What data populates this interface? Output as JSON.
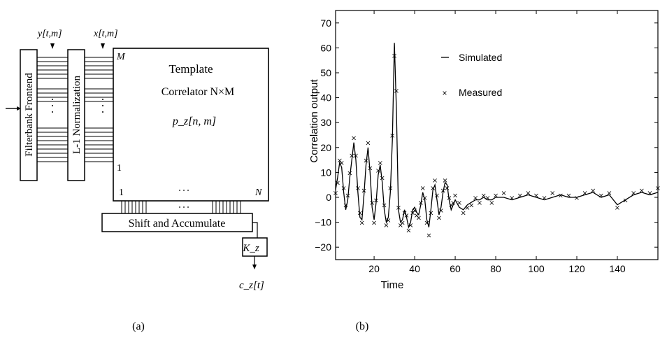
{
  "diagram": {
    "inputs": {
      "y_label": "y[t,m]",
      "x_label": "x[t,m]"
    },
    "blocks": {
      "frontend": "Filterbank Frontend",
      "normalization": "L-1 Normalization",
      "template_title": "Template",
      "template_sub": "Correlator N×M",
      "template_weights": "p_z[n, m]",
      "shift_accumulate": "Shift and Accumulate",
      "gain": "K_z"
    },
    "axis_labels": {
      "m_top": "M",
      "m_bottom": "1",
      "n_left": "1",
      "n_right": "N"
    },
    "output_label": "c_z[t]",
    "caption": "(a)"
  },
  "chart": {
    "caption": "(b)",
    "legend": {
      "simulated": "Simulated",
      "measured": "Measured"
    }
  },
  "chart_data": {
    "type": "line",
    "xlabel": "Time",
    "ylabel": "Correlation output",
    "xlim": [
      1,
      160
    ],
    "ylim": [
      -25,
      75
    ],
    "xticks": [
      20,
      40,
      60,
      80,
      100,
      120,
      140
    ],
    "yticks": [
      -20,
      -10,
      0,
      10,
      20,
      30,
      40,
      50,
      60,
      70
    ],
    "grid": false,
    "legend_position": "top-center",
    "series": [
      {
        "name": "Simulated",
        "style": "line",
        "x": [
          1,
          2,
          3,
          4,
          5,
          6,
          7,
          8,
          9,
          10,
          11,
          12,
          13,
          14,
          15,
          16,
          17,
          18,
          19,
          20,
          21,
          22,
          23,
          24,
          25,
          26,
          27,
          28,
          29,
          30,
          31,
          32,
          33,
          34,
          35,
          36,
          37,
          38,
          39,
          40,
          41,
          42,
          43,
          44,
          45,
          46,
          47,
          48,
          49,
          50,
          51,
          52,
          53,
          54,
          55,
          56,
          57,
          58,
          59,
          60,
          62,
          64,
          66,
          68,
          70,
          72,
          74,
          76,
          78,
          80,
          84,
          88,
          92,
          96,
          100,
          104,
          108,
          112,
          116,
          120,
          124,
          128,
          132,
          136,
          140,
          144,
          148,
          152,
          156,
          160
        ],
        "y": [
          3,
          8,
          14,
          12,
          2,
          -5,
          -1,
          8,
          15,
          22,
          15,
          2,
          -8,
          -9,
          1,
          13,
          20,
          10,
          -4,
          -9,
          -2,
          9,
          13,
          6,
          -5,
          -10,
          -8,
          2,
          23,
          62,
          35,
          -5,
          -10,
          -9,
          -5,
          -8,
          -12,
          -10,
          -5,
          -4,
          -6,
          -7,
          -3,
          2,
          -1,
          -9,
          -12,
          -5,
          3,
          5,
          -1,
          -7,
          -4,
          2,
          6,
          5,
          -1,
          -5,
          -3,
          -1,
          -4,
          -5,
          -3,
          -2,
          -1,
          -1,
          0,
          -1,
          -1,
          0,
          0,
          -1,
          0,
          1,
          0,
          -1,
          0,
          1,
          0,
          0,
          1,
          2,
          0,
          1,
          -3,
          -1,
          1,
          2,
          1,
          2
        ]
      },
      {
        "name": "Measured",
        "style": "markers-x",
        "x": [
          1,
          2,
          3,
          4,
          5,
          6,
          7,
          8,
          9,
          10,
          11,
          12,
          13,
          14,
          15,
          16,
          17,
          18,
          19,
          20,
          21,
          22,
          23,
          24,
          25,
          26,
          27,
          28,
          29,
          30,
          31,
          32,
          33,
          34,
          35,
          36,
          37,
          38,
          39,
          40,
          41,
          42,
          43,
          44,
          45,
          46,
          47,
          48,
          49,
          50,
          51,
          52,
          53,
          54,
          55,
          56,
          57,
          58,
          59,
          60,
          62,
          64,
          66,
          68,
          70,
          72,
          74,
          76,
          78,
          80,
          84,
          88,
          92,
          96,
          100,
          104,
          108,
          112,
          116,
          120,
          124,
          128,
          132,
          136,
          140,
          144,
          148,
          152,
          156,
          160
        ],
        "y": [
          2,
          6,
          15,
          14,
          4,
          -3,
          1,
          10,
          17,
          24,
          17,
          4,
          -6,
          -10,
          3,
          15,
          22,
          12,
          -2,
          -10,
          -1,
          11,
          14,
          8,
          -3,
          -11,
          -9,
          4,
          25,
          57,
          43,
          -4,
          -11,
          -10,
          -6,
          -7,
          -13,
          -11,
          -6,
          -5,
          -7,
          -8,
          -2,
          4,
          0,
          -10,
          -15,
          -6,
          4,
          7,
          1,
          -8,
          -5,
          3,
          7,
          4,
          0,
          -3,
          -2,
          1,
          -2,
          -6,
          -4,
          -3,
          0,
          -2,
          1,
          0,
          -2,
          1,
          2,
          0,
          1,
          2,
          1,
          0,
          2,
          1,
          1,
          0,
          2,
          3,
          1,
          2,
          -4,
          -1,
          2,
          3,
          2,
          4
        ]
      }
    ]
  }
}
